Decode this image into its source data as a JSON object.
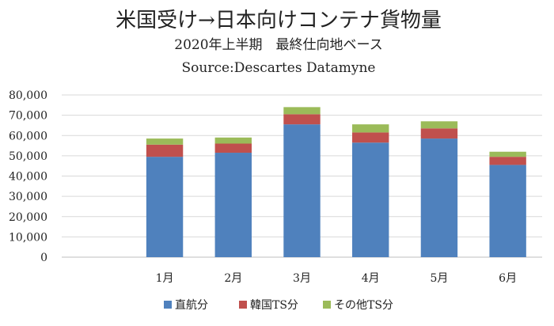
{
  "chart_data": {
    "type": "bar",
    "stacked": true,
    "title": "米国受け→日本向けコンテナ貨物量",
    "subtitle": "2020年上半期　最終仕向地ベース",
    "source": "Source:Descartes Datamyne",
    "xlabel": "",
    "ylabel": "",
    "categories": [
      "",
      "1月",
      "2月",
      "3月",
      "4月",
      "5月",
      "6月"
    ],
    "ylim": [
      0,
      80000
    ],
    "yticks": [
      "0",
      "10,000",
      "20,000",
      "30,000",
      "40,000",
      "50,000",
      "60,000",
      "70,000",
      "80,000"
    ],
    "grid": true,
    "legend_position": "bottom",
    "series": [
      {
        "name": "直航分",
        "color": "#4F81BD",
        "values": [
          null,
          49500,
          51500,
          65500,
          56500,
          58500,
          45500
        ]
      },
      {
        "name": "韓国TS分",
        "color": "#C0504D",
        "values": [
          null,
          6000,
          4500,
          5000,
          5000,
          5000,
          4000
        ]
      },
      {
        "name": "その他TS分",
        "color": "#9BBB59",
        "values": [
          null,
          3000,
          3000,
          3500,
          4000,
          3500,
          2500
        ]
      }
    ]
  }
}
